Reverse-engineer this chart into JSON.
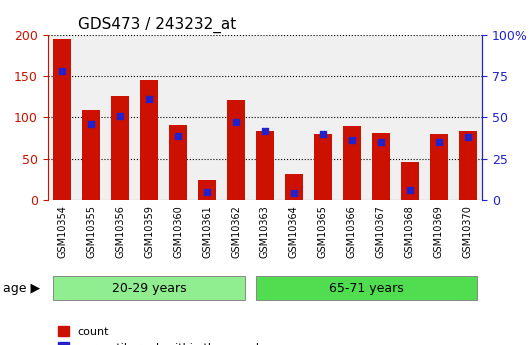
{
  "title": "GDS473 / 243232_at",
  "samples": [
    "GSM10354",
    "GSM10355",
    "GSM10356",
    "GSM10359",
    "GSM10360",
    "GSM10361",
    "GSM10362",
    "GSM10363",
    "GSM10364",
    "GSM10365",
    "GSM10366",
    "GSM10367",
    "GSM10368",
    "GSM10369",
    "GSM10370"
  ],
  "counts": [
    194,
    109,
    126,
    145,
    91,
    24,
    121,
    84,
    31,
    80,
    90,
    81,
    46,
    80,
    83
  ],
  "percentiles": [
    78,
    46,
    51,
    61,
    39,
    5,
    47,
    42,
    4,
    40,
    36,
    35,
    6,
    35,
    38
  ],
  "groups": [
    {
      "label": "20-29 years",
      "start": 0,
      "end": 7,
      "color": "#90ee90"
    },
    {
      "label": "65-71 years",
      "start": 7,
      "end": 15,
      "color": "#50dd50"
    }
  ],
  "bar_color": "#cc1100",
  "marker_color": "#2222cc",
  "left_axis_color": "#cc1100",
  "right_axis_color": "#2222cc",
  "ylim_left": [
    0,
    200
  ],
  "ylim_right": [
    0,
    100
  ],
  "yticks_left": [
    0,
    50,
    100,
    150,
    200
  ],
  "yticks_right": [
    0,
    25,
    50,
    75,
    100
  ],
  "ytick_labels_right": [
    "0",
    "25",
    "50",
    "75",
    "100%"
  ],
  "bg_plot": "#f0f0f0",
  "bar_width": 0.6
}
